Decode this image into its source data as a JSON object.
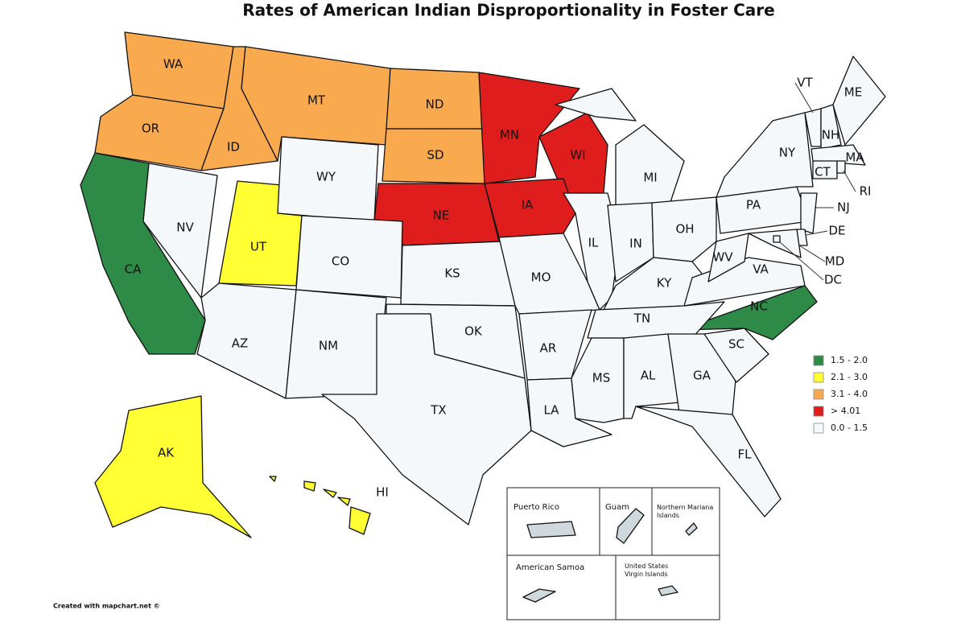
{
  "title": "Rates of American Indian Disproportionality in Foster Care",
  "legend": [
    {
      "label": "1.5 - 2.0",
      "color": "#2e8b47",
      "states": [
        "CA",
        "NC"
      ]
    },
    {
      "label": "2.1 - 3.0",
      "color": "#ffff33",
      "states": [
        "UT",
        "AK",
        "HI"
      ]
    },
    {
      "label": "3.1 - 4.0",
      "color": "#f9aa4e",
      "states": [
        "WA",
        "OR",
        "ID",
        "MT",
        "ND",
        "SD"
      ]
    },
    {
      "label": "> 4.01",
      "color": "#e01d1d",
      "states": [
        "MN",
        "WI",
        "NE",
        "IA"
      ]
    },
    {
      "label": "0.0 - 1.5",
      "color": "#f4f8fa",
      "states": [
        "NV",
        "WY",
        "CO",
        "AZ",
        "NM",
        "KS",
        "OK",
        "TX",
        "MO",
        "AR",
        "LA",
        "IL",
        "MI",
        "IN",
        "OH",
        "KY",
        "TN",
        "MS",
        "AL",
        "GA",
        "FL",
        "SC",
        "VA",
        "WV",
        "PA",
        "NY",
        "VT",
        "NH",
        "ME",
        "MA",
        "CT",
        "RI",
        "NJ",
        "DE",
        "MD",
        "DC"
      ]
    }
  ],
  "territory_color": "#cfd8dc",
  "territories": [
    "Puerto Rico",
    "Guam",
    "Northern Mariana Islands",
    "American Samoa",
    "United States Virgin Islands"
  ],
  "credit": "Created with mapchart.net ©"
}
